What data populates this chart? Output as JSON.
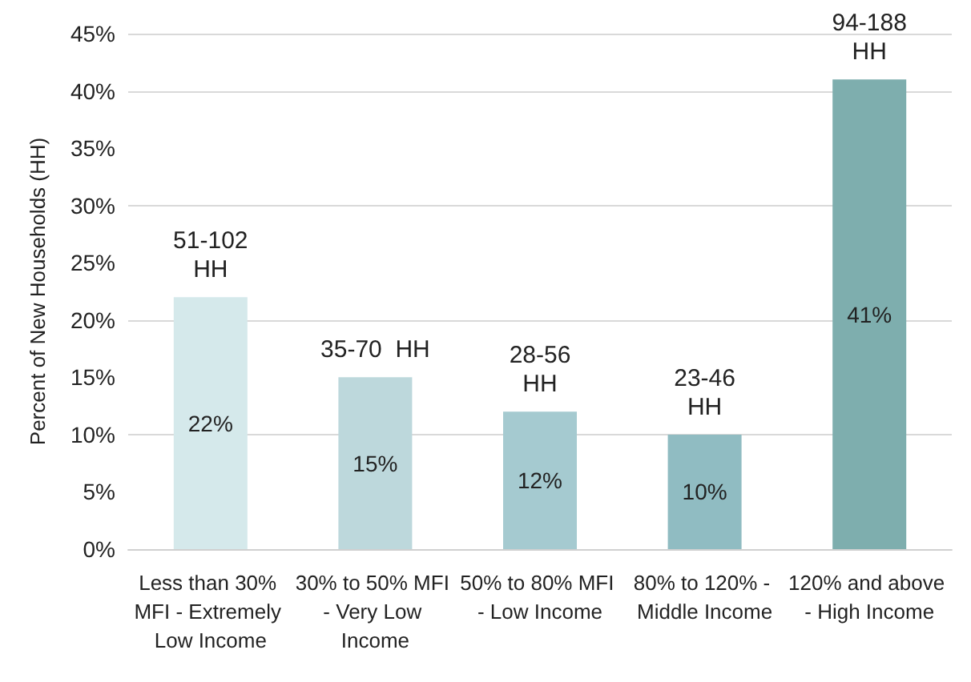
{
  "chart_data": {
    "type": "bar",
    "ylabel": "Percent of New Households (HH)",
    "categories": [
      "Less than 30% MFI - Extremely Low Income",
      "30% to 50% MFI - Very Low Income",
      "50% to 80% MFI - Low Income",
      "80% to 120% - Middle Income",
      "120% and above - High Income"
    ],
    "values": [
      22,
      15,
      12,
      10,
      41
    ],
    "colors": [
      "#d5e9eb",
      "#bdd8dc",
      "#a5cad0",
      "#90bcc2",
      "#7eaeae"
    ],
    "value_labels": [
      "22%",
      "15%",
      "12%",
      "10%",
      "41%"
    ],
    "ylim": [
      0,
      45
    ],
    "yticks": [
      {
        "value": 0,
        "label": "0%"
      },
      {
        "value": 5,
        "label": "5%"
      },
      {
        "value": 10,
        "label": "10%"
      },
      {
        "value": 15,
        "label": "15%"
      },
      {
        "value": 20,
        "label": "20%"
      },
      {
        "value": 25,
        "label": "25%"
      },
      {
        "value": 30,
        "label": "30%"
      },
      {
        "value": 35,
        "label": "35%"
      },
      {
        "value": 40,
        "label": "40%"
      },
      {
        "value": 45,
        "label": "45%"
      }
    ],
    "grid": "y",
    "annotations": [
      {
        "text": "51-102\nHH",
        "x": "Less than 30% MFI - Extremely Low Income",
        "y": 22
      },
      {
        "text": "35-70  HH",
        "x": "30% to 50% MFI - Very Low Income",
        "y": 15
      },
      {
        "text": "28-56\nHH",
        "x": "50% to 80% MFI - Low Income",
        "y": 12
      },
      {
        "text": "23-46\nHH",
        "x": "80% to 120% - Middle Income",
        "y": 10
      },
      {
        "text": "94-188\nHH",
        "x": "120% and above - High Income",
        "y": 41
      }
    ]
  }
}
